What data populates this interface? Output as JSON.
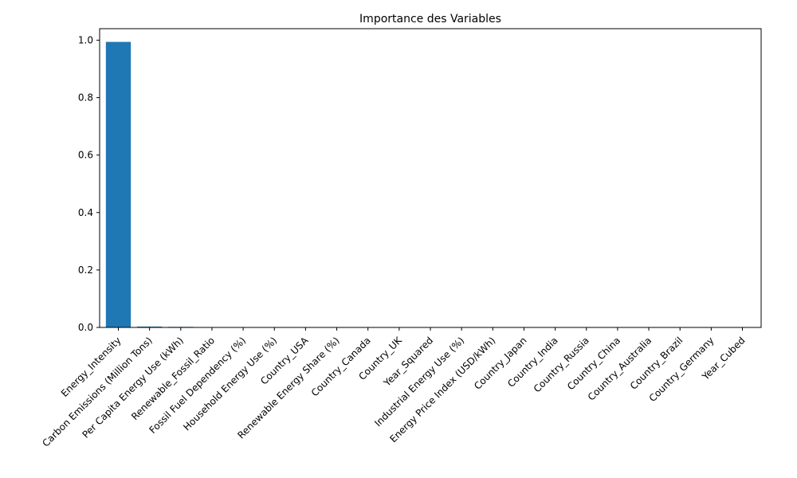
{
  "chart_data": {
    "type": "bar",
    "title": "Importance des Variables",
    "xlabel": "",
    "ylabel": "",
    "ylim": [
      0,
      1.04
    ],
    "yticks": [
      0.0,
      0.2,
      0.4,
      0.6,
      0.8,
      1.0
    ],
    "ytick_labels": [
      "0.0",
      "0.2",
      "0.4",
      "0.6",
      "0.8",
      "1.0"
    ],
    "grid": false,
    "bar_color": "#1f77b4",
    "categories": [
      "Energy_Intensity",
      "Carbon Emissions (Million Tons)",
      "Per Capita Energy Use (kWh)",
      "Renewable_Fossil_Ratio",
      "Fossil Fuel Dependency (%)",
      "Household Energy Use (%)",
      "Country_USA",
      "Renewable Energy Share (%)",
      "Country_Canada",
      "Country_UK",
      "Year_Squared",
      "Industrial Energy Use (%)",
      "Energy Price Index (USD/kWh)",
      "Country_Japan",
      "Country_India",
      "Country_Russia",
      "Country_China",
      "Country_Australia",
      "Country_Brazil",
      "Country_Germany",
      "Year_Cubed"
    ],
    "values": [
      0.994,
      0.003,
      0.002,
      0.0004,
      0.0002,
      0.0001,
      0.0001,
      0.0001,
      0.0001,
      0.0001,
      0.0001,
      0.0001,
      0.0001,
      0.0,
      0.0,
      0.0,
      0.0,
      0.0,
      0.0,
      0.0,
      0.0
    ]
  }
}
